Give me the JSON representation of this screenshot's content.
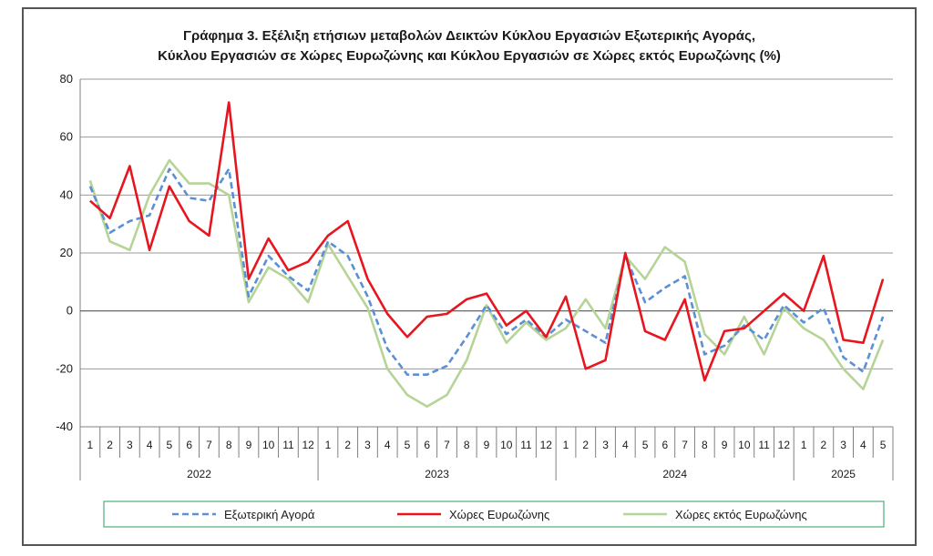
{
  "chart_data": {
    "type": "line",
    "title_line1": "Γράφημα 3. Εξέλιξη  ετήσιων μεταβολών Δεικτών Κύκλου Εργασιών Εξωτερικής Αγοράς,",
    "title_line2": "Κύκλου Εργασιών σε Χώρες Ευρωζώνης και Κύκλου Εργασιών σε Χώρες εκτός Ευρωζώνης (%)",
    "xlabel": "",
    "ylabel": "",
    "ylim": [
      -40,
      80
    ],
    "yticks": [
      -40,
      -20,
      0,
      20,
      40,
      60,
      80
    ],
    "grid": true,
    "legend_position": "bottom",
    "categories": [
      "1",
      "2",
      "3",
      "4",
      "5",
      "6",
      "7",
      "8",
      "9",
      "10",
      "11",
      "12",
      "1",
      "2",
      "3",
      "4",
      "5",
      "6",
      "7",
      "8",
      "9",
      "10",
      "11",
      "12",
      "1",
      "2",
      "3",
      "4",
      "5",
      "6",
      "7",
      "8",
      "9",
      "10",
      "11",
      "12",
      "1",
      "2",
      "3",
      "4",
      "5"
    ],
    "years": [
      {
        "label": "2022",
        "months": 12
      },
      {
        "label": "2023",
        "months": 12
      },
      {
        "label": "2024",
        "months": 12
      },
      {
        "label": "2025",
        "months": 5
      }
    ],
    "series": [
      {
        "name": "Εξωτερική Αγορά",
        "color": "#5b8fd6",
        "dash": "dashed",
        "values": [
          43,
          27,
          31,
          33,
          49,
          39,
          38,
          49,
          5,
          19,
          12,
          7,
          24,
          19,
          5,
          -13,
          -22,
          -22,
          -19,
          -9,
          2,
          -8,
          -3,
          -9,
          -3,
          -7,
          -11,
          19,
          3,
          8,
          12,
          -15,
          -12,
          -5,
          -10,
          2,
          -4,
          1,
          -16,
          -21,
          -2
        ]
      },
      {
        "name": "Χώρες Ευρωζώνης",
        "color": "#e8141e",
        "dash": "solid",
        "values": [
          38,
          32,
          50,
          21,
          43,
          31,
          26,
          72,
          11,
          25,
          14,
          17,
          26,
          31,
          11,
          -1,
          -9,
          -2,
          -1,
          4,
          6,
          -5,
          0,
          -9,
          5,
          -20,
          -17,
          20,
          -7,
          -10,
          4,
          -24,
          -7,
          -6,
          0,
          6,
          0,
          19,
          -10,
          -11,
          11
        ]
      },
      {
        "name": "Χώρες εκτός Ευρωζώνης",
        "color": "#b5d495",
        "dash": "solid",
        "values": [
          45,
          24,
          21,
          40,
          52,
          44,
          44,
          40,
          3,
          15,
          11,
          3,
          23,
          12,
          1,
          -20,
          -29,
          -33,
          -29,
          -17,
          2,
          -11,
          -4,
          -10,
          -6,
          4,
          -6,
          19,
          11,
          22,
          17,
          -8,
          -15,
          -2,
          -15,
          1,
          -6,
          -10,
          -20,
          -27,
          -10
        ]
      }
    ]
  }
}
